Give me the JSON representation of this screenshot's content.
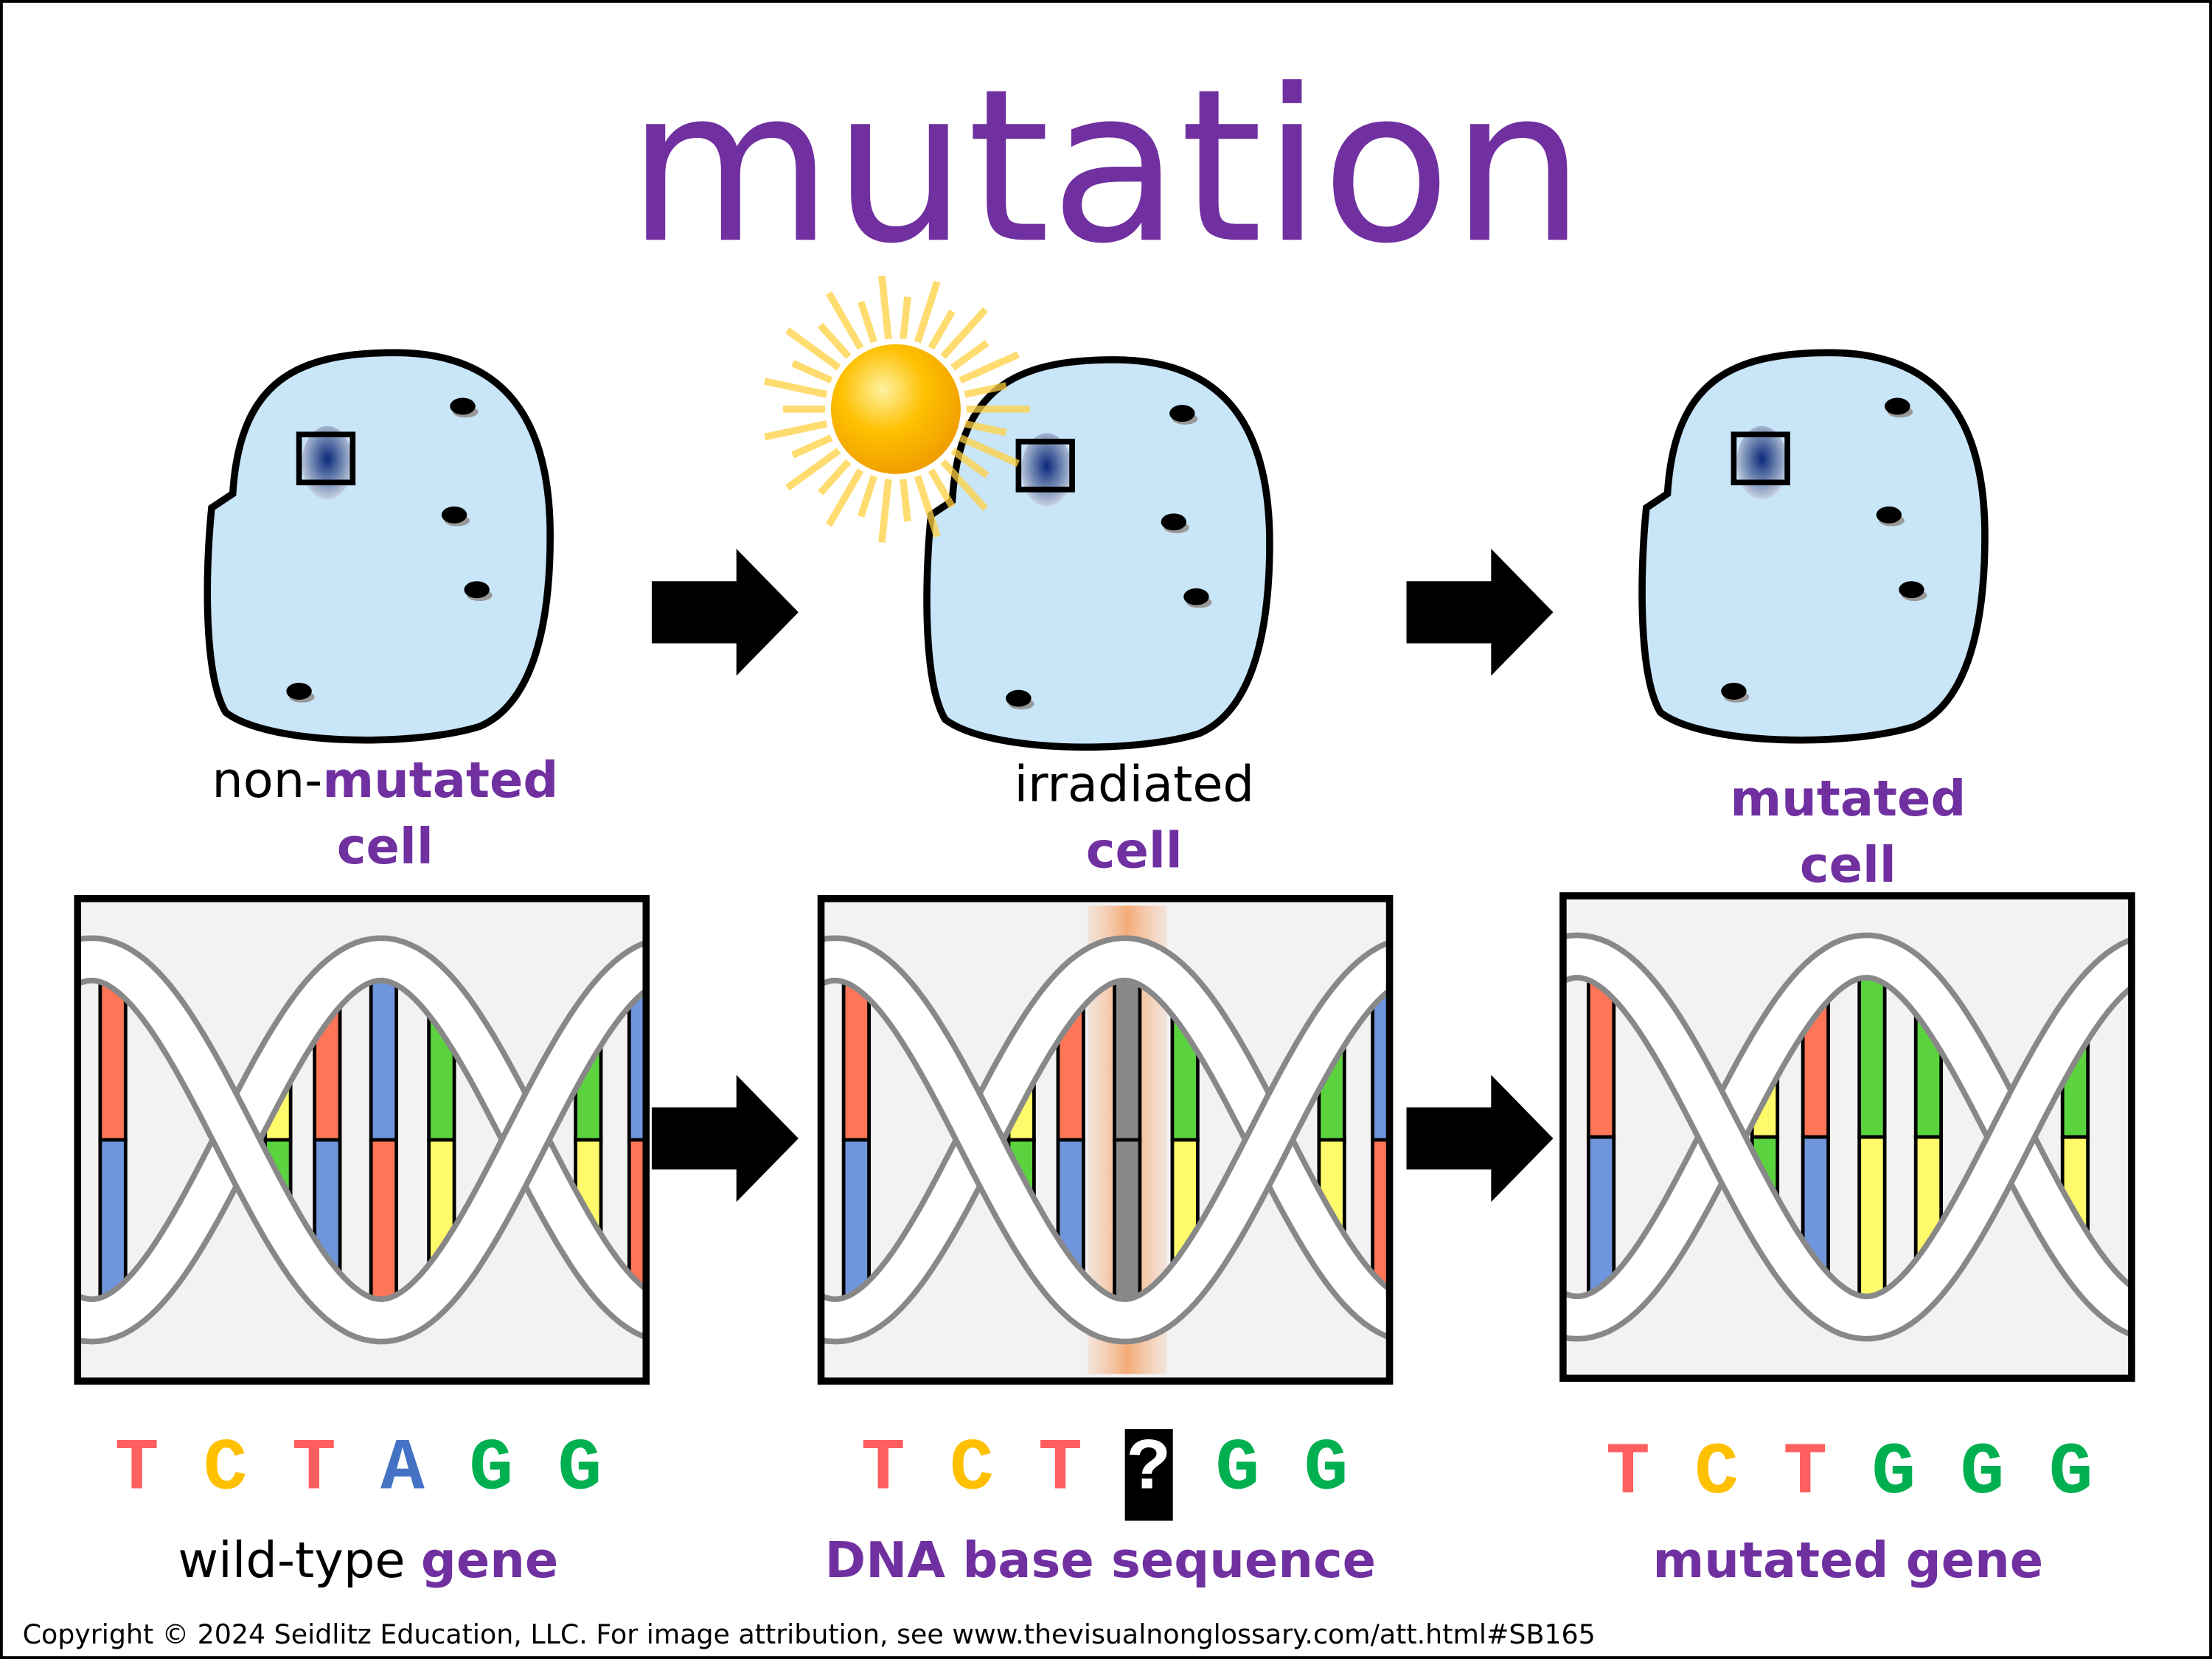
{
  "title": "mutation",
  "colors": {
    "purple": "#7030a0",
    "cell_fill": "#c9e5f8",
    "T": "#ff5f5f",
    "C": "#ffc000",
    "A": "#4472c4",
    "G": "#00b050",
    "red": "#ff7558",
    "blue": "#6f96dd",
    "yellow": "#fffa6a",
    "green": "#5ad33f",
    "gray": "#888888"
  },
  "cells": [
    {
      "label_prefix": "non-",
      "label_highlight": "mutated",
      "label_line2": "cell"
    },
    {
      "label_line1": "irradiated",
      "label_line2": "cell"
    },
    {
      "label_line1": "mutated",
      "label_line2": "cell"
    }
  ],
  "sequences": [
    {
      "bases": [
        "T",
        "C",
        "T",
        "A",
        "G",
        "G"
      ],
      "caption_plain": "wild-type ",
      "caption_highlight": "gene"
    },
    {
      "bases": [
        "T",
        "C",
        "T",
        "?",
        "G",
        "G"
      ],
      "caption_highlight": "DNA base sequence"
    },
    {
      "bases": [
        "T",
        "C",
        "T",
        "G",
        "G",
        "G"
      ],
      "caption_highlight": "mutated gene"
    }
  ],
  "dna_panels": [
    {
      "pairs": [
        [
          "red",
          "blue"
        ],
        [
          "yellow",
          "green"
        ],
        [
          "red",
          "blue"
        ],
        [
          "blue",
          "red"
        ],
        [
          "green",
          "yellow"
        ],
        [
          "green",
          "yellow"
        ],
        [
          "blue",
          "red"
        ]
      ]
    },
    {
      "pairs": [
        [
          "red",
          "blue"
        ],
        [
          "yellow",
          "green"
        ],
        [
          "red",
          "blue"
        ],
        [
          "gray",
          "gray"
        ],
        [
          "green",
          "yellow"
        ],
        [
          "green",
          "yellow"
        ],
        [
          "blue",
          "red"
        ]
      ],
      "damaged_pair": 3
    },
    {
      "pairs": [
        [
          "red",
          "blue"
        ],
        [
          "yellow",
          "green"
        ],
        [
          "red",
          "blue"
        ],
        [
          "green",
          "yellow"
        ],
        [
          "green",
          "yellow"
        ],
        [
          "green",
          "yellow"
        ]
      ]
    }
  ],
  "copyright": "Copyright © 2024 Seidlitz Education, LLC.  For image attribution, see www.thevisualnonglossary.com/att.html#SB165"
}
